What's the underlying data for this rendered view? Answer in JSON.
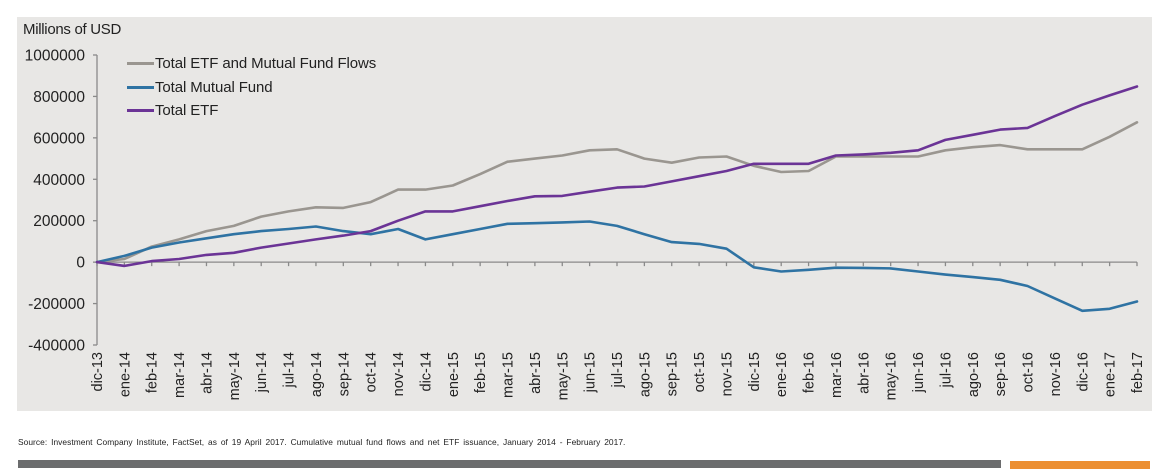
{
  "chart_data": {
    "type": "line",
    "title": "",
    "ylabel": "Millions of USD",
    "xlabel": "",
    "ylim": [
      -400000,
      1000000
    ],
    "yticks": [
      1000000,
      800000,
      600000,
      400000,
      200000,
      0,
      -200000,
      -400000
    ],
    "ytick_labels": [
      "1000000",
      "800000",
      "600000",
      "400000",
      "200000",
      "0",
      "-200000",
      "-400000"
    ],
    "grid": false,
    "legend_position": "top-left",
    "categories": [
      "dic-13",
      "ene-14",
      "feb-14",
      "mar-14",
      "abr-14",
      "may-14",
      "jun-14",
      "jul-14",
      "ago-14",
      "sep-14",
      "oct-14",
      "nov-14",
      "dic-14",
      "ene-15",
      "feb-15",
      "mar-15",
      "abr-15",
      "may-15",
      "jun-15",
      "jul-15",
      "ago-15",
      "sep-15",
      "oct-15",
      "nov-15",
      "dic-15",
      "ene-16",
      "feb-16",
      "mar-16",
      "abr-16",
      "may-16",
      "jun-16",
      "jul-16",
      "ago-16",
      "sep-16",
      "oct-16",
      "nov-16",
      "dic-16",
      "ene-17",
      "feb-17"
    ],
    "series": [
      {
        "name": "Total ETF and Mutual Fund Flows",
        "color": "#9a9690",
        "values": [
          0,
          15000,
          75000,
          110000,
          150000,
          175000,
          220000,
          245000,
          265000,
          262000,
          290000,
          350000,
          350000,
          370000,
          425000,
          485000,
          500000,
          515000,
          540000,
          545000,
          500000,
          480000,
          505000,
          510000,
          465000,
          435000,
          440000,
          510000,
          510000,
          510000,
          510000,
          540000,
          555000,
          565000,
          545000,
          545000,
          545000,
          605000,
          675000
        ]
      },
      {
        "name": "Total Mutual Fund",
        "color": "#2f73a3",
        "values": [
          0,
          30000,
          70000,
          95000,
          115000,
          135000,
          150000,
          160000,
          172000,
          150000,
          135000,
          160000,
          110000,
          135000,
          160000,
          185000,
          188000,
          192000,
          196000,
          175000,
          135000,
          97000,
          88000,
          65000,
          -25000,
          -45000,
          -37000,
          -27000,
          -28000,
          -30000,
          -45000,
          -60000,
          -72000,
          -85000,
          -115000,
          -175000,
          -235000,
          -225000,
          -190000
        ]
      },
      {
        "name": "Total ETF",
        "color": "#6b3496",
        "values": [
          0,
          -18000,
          5000,
          15000,
          35000,
          45000,
          70000,
          90000,
          110000,
          128000,
          150000,
          200000,
          245000,
          245000,
          270000,
          295000,
          318000,
          320000,
          340000,
          360000,
          365000,
          390000,
          415000,
          440000,
          475000,
          475000,
          475000,
          515000,
          520000,
          528000,
          540000,
          590000,
          615000,
          640000,
          648000,
          705000,
          760000,
          805000,
          848000
        ]
      }
    ]
  },
  "footer": {
    "source": "Source: Investment Company Institute, FactSet, as of 19 April 2017. Cumulative mutual fund flows and net ETF issuance, January 2014 - February 2017."
  },
  "colors": {
    "panel_bg": "#e8e7e5",
    "axis": "#8a8a8a",
    "footer_bar_gray": "#6b6c6d",
    "footer_bar_orange": "#ec8f32"
  }
}
